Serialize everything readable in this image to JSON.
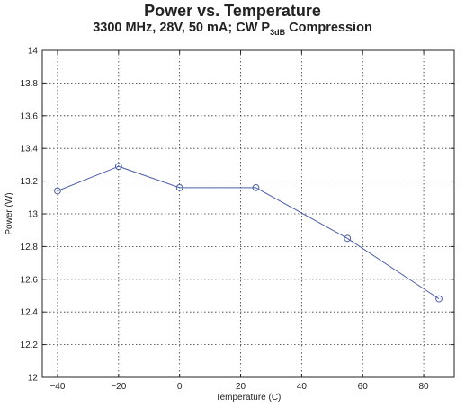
{
  "chart_data": {
    "type": "line",
    "title": "Power vs. Temperature",
    "subtitle": {
      "prefix": "3300 MHz, 28V, 50 mA; CW P",
      "subscript": "3dB",
      "suffix": " Compression"
    },
    "xlabel": "Temperature (C)",
    "ylabel": "Power (W)",
    "xlim": [
      -45,
      90
    ],
    "ylim": [
      12,
      14
    ],
    "xticks": [
      -40,
      -20,
      0,
      20,
      40,
      60,
      80
    ],
    "yticks": [
      12,
      12.2,
      12.4,
      12.6,
      12.8,
      13,
      13.2,
      13.4,
      13.6,
      13.8,
      14
    ],
    "grid": true,
    "series": [
      {
        "x": [
          -40,
          -20,
          0,
          25,
          55,
          85
        ],
        "y": [
          13.14,
          13.29,
          13.16,
          13.16,
          12.85,
          12.48
        ],
        "color": "#4d5fa8",
        "marker": "circle"
      }
    ]
  }
}
